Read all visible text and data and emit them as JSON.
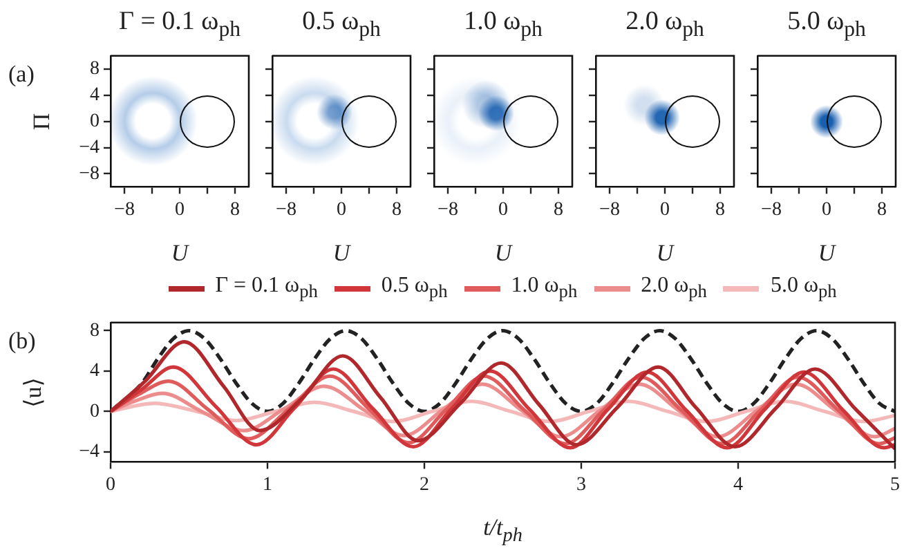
{
  "chart_data": [
    {
      "type": "line",
      "title": "Γ = 0.1 ω$_{ph}$",
      "xlabel": "U",
      "ylabel": "Π",
      "annotations": [
        "(a)"
      ],
      "xlim": [
        -10,
        10
      ],
      "ylim": [
        -10,
        10
      ],
      "xticks": [
        {
          "value": -8,
          "label": "−8"
        },
        {
          "value": -4,
          "label": null
        },
        0,
        {
          "value": 4,
          "label": null
        },
        8
      ],
      "yticks": [
        {
          "value": -8,
          "label": "−8"
        },
        {
          "value": -4,
          "label": "−4"
        },
        0,
        4,
        8
      ]
    },
    {
      "type": "line",
      "title": "0.5 ω$_{ph}$",
      "xlabel": "U",
      "xlim": [
        -10,
        10
      ],
      "ylim": [
        -10,
        10
      ],
      "xticks": [
        {
          "value": -8,
          "label": "−8"
        },
        {
          "value": -4,
          "label": null
        },
        0,
        {
          "value": 4,
          "label": null
        },
        8
      ],
      "yticks": [
        {
          "value": -8,
          "label": null
        },
        {
          "value": -4,
          "label": null
        },
        {
          "value": 0,
          "label": null
        },
        {
          "value": 4,
          "label": null
        },
        {
          "value": 8,
          "label": null
        }
      ],
      "tick_labels": "x"
    },
    {
      "type": "line",
      "title": "1.0 ω$_{ph}$",
      "xlabel": "U",
      "xlim": [
        -10,
        10
      ],
      "ylim": [
        -10,
        10
      ],
      "xticks": [
        {
          "value": -8,
          "label": "−8"
        },
        {
          "value": -4,
          "label": null
        },
        0,
        {
          "value": 4,
          "label": null
        },
        8
      ],
      "yticks": [
        {
          "value": -8,
          "label": null
        },
        {
          "value": -4,
          "label": null
        },
        {
          "value": 0,
          "label": null
        },
        {
          "value": 4,
          "label": null
        },
        {
          "value": 8,
          "label": null
        }
      ],
      "tick_labels": "x"
    },
    {
      "type": "line",
      "title": "2.0 ω$_{ph}$",
      "xlabel": "U",
      "xlim": [
        -10,
        10
      ],
      "ylim": [
        -10,
        10
      ],
      "xticks": [
        {
          "value": -8,
          "label": "−8"
        },
        {
          "value": -4,
          "label": null
        },
        0,
        {
          "value": 4,
          "label": null
        },
        8
      ],
      "yticks": [
        {
          "value": -8,
          "label": null
        },
        {
          "value": -4,
          "label": null
        },
        {
          "value": 0,
          "label": null
        },
        {
          "value": 4,
          "label": null
        },
        {
          "value": 8,
          "label": null
        }
      ],
      "tick_labels": "x"
    },
    {
      "type": "line",
      "title": "5.0 ω$_{ph}$",
      "xlabel": "U",
      "xlim": [
        -10,
        10
      ],
      "ylim": [
        -10,
        10
      ],
      "xticks": [
        {
          "value": -8,
          "label": "−8"
        },
        {
          "value": -4,
          "label": null
        },
        0,
        {
          "value": 4,
          "label": null
        },
        8
      ],
      "yticks": [
        {
          "value": -8,
          "label": null
        },
        {
          "value": -4,
          "label": null
        },
        {
          "value": 0,
          "label": null
        },
        {
          "value": 4,
          "label": null
        },
        {
          "value": 8,
          "label": null
        }
      ],
      "tick_labels": "x"
    },
    {
      "type": "line",
      "xlabel": "t/t$_{ph}$",
      "ylabel": "⟨u⟩",
      "annotations": [
        "(b)"
      ],
      "xlim": [
        0,
        5
      ],
      "ylim": [
        -5,
        8.8
      ],
      "xticks": [
        0,
        1,
        2,
        3,
        4,
        5
      ],
      "yticks": [
        {
          "value": -4,
          "label": "−4"
        },
        0,
        4,
        8
      ],
      "legend": "top",
      "marker": "none",
      "series": [
        {
          "name": "Γ = 0.1 ω$_{ph}$",
          "color": "#b0282c",
          "x": [
            0,
            0.22,
            0.47,
            0.72,
            0.95,
            1.22,
            1.48,
            1.72,
            1.96,
            2.23,
            2.49,
            2.73,
            2.97,
            3.23,
            3.49,
            3.73,
            3.98,
            4.24,
            4.49,
            4.75,
            5
          ],
          "values": [
            0,
            3,
            6.9,
            2.5,
            -1.9,
            1.3,
            5.5,
            1.4,
            -2.9,
            0.8,
            4.8,
            0.7,
            -3.3,
            0.4,
            4.4,
            0.4,
            -3.5,
            0.3,
            4.2,
            0.2,
            -3.7
          ]
        },
        {
          "name": "0.5 ω$_{ph}$",
          "color": "#d0363a",
          "x": [
            0,
            0.2,
            0.4,
            0.67,
            0.93,
            1.17,
            1.42,
            1.67,
            1.93,
            2.17,
            2.42,
            2.67,
            2.93,
            3.17,
            3.42,
            3.67,
            3.93,
            4.17,
            4.42,
            4.67,
            4.93,
            5
          ],
          "values": [
            0,
            2.2,
            4.4,
            0.5,
            -3.3,
            0.3,
            4.2,
            0.3,
            -3.5,
            0.2,
            4,
            0.2,
            -3.6,
            0.2,
            3.9,
            0.1,
            -3.6,
            0.2,
            3.9,
            0.1,
            -3.6,
            -3.3
          ]
        },
        {
          "name": "1.0 ω$_{ph}$",
          "color": "#e05c5c",
          "x": [
            0,
            0.18,
            0.37,
            0.62,
            0.88,
            1.14,
            1.4,
            1.65,
            1.9,
            2.14,
            2.38,
            2.64,
            2.9,
            3.14,
            3.38,
            3.64,
            3.9,
            4.14,
            4.38,
            4.64,
            4.9,
            5
          ],
          "values": [
            0,
            1.7,
            3,
            0.2,
            -2.7,
            0.3,
            3.5,
            0.2,
            -3.1,
            0.2,
            3.5,
            0.1,
            -3.2,
            0.1,
            3.4,
            0.1,
            -3.2,
            0.1,
            3.4,
            0.1,
            -3.2,
            -2.6
          ]
        },
        {
          "name": "2.0 ω$_{ph}$",
          "color": "#ec8c8c",
          "x": [
            0,
            0.15,
            0.33,
            0.58,
            0.85,
            1.11,
            1.36,
            1.62,
            1.87,
            2.12,
            2.37,
            2.62,
            2.87,
            3.12,
            3.37,
            3.62,
            3.87,
            4.12,
            4.37,
            4.62,
            4.87,
            5
          ],
          "values": [
            0,
            1,
            1.8,
            0,
            -1.9,
            0.3,
            2.5,
            0.1,
            -2.4,
            0.2,
            2.7,
            0.1,
            -2.5,
            0.1,
            2.7,
            0.1,
            -2.5,
            0.1,
            2.7,
            0.1,
            -2.5,
            -1.7
          ]
        },
        {
          "name": "5.0 ω$_{ph}$",
          "color": "#f4b8b8",
          "x": [
            0,
            0.28,
            0.55,
            0.8,
            1.05,
            1.3,
            1.55,
            1.8,
            2.05,
            2.3,
            2.55,
            2.8,
            3.05,
            3.3,
            3.55,
            3.8,
            4.05,
            4.3,
            4.55,
            4.8,
            5
          ],
          "values": [
            0,
            0.8,
            0,
            -0.9,
            0,
            0.9,
            0,
            -1,
            0,
            1,
            0,
            -1,
            0,
            1,
            0,
            -1,
            0,
            1,
            0,
            -1,
            -0.4
          ]
        },
        {
          "color": "#222222",
          "line_style": "dashed",
          "x": [
            0,
            0.1,
            0.2,
            0.3,
            0.4,
            0.5,
            0.6,
            0.7,
            0.8,
            0.9,
            1,
            1.1,
            1.2,
            1.3,
            1.4,
            1.5,
            1.6,
            1.7,
            1.8,
            1.9,
            2,
            2.1,
            2.2,
            2.3,
            2.4,
            2.5,
            2.6,
            2.7,
            2.8,
            2.9,
            3,
            3.1,
            3.2,
            3.3,
            3.4,
            3.5,
            3.6,
            3.7,
            3.8,
            3.9,
            4,
            4.1,
            4.2,
            4.3,
            4.4,
            4.5,
            4.6,
            4.7,
            4.8,
            4.9,
            5
          ],
          "values": [
            0,
            null,
            2.8,
            5.2,
            7.2,
            8,
            7.2,
            5.2,
            2.8,
            0.8,
            0,
            0.8,
            2.8,
            5.2,
            7.2,
            8,
            7.2,
            5.2,
            2.8,
            0.8,
            0,
            0.8,
            2.8,
            5.2,
            7.2,
            8,
            7.2,
            5.2,
            2.8,
            0.8,
            0,
            0.8,
            2.8,
            5.2,
            7.2,
            8,
            7.2,
            5.2,
            2.8,
            0.8,
            0,
            0.8,
            2.8,
            5.2,
            7.2,
            8,
            7.2,
            5.2,
            2.8,
            0.8,
            0
          ]
        }
      ]
    }
  ]
}
